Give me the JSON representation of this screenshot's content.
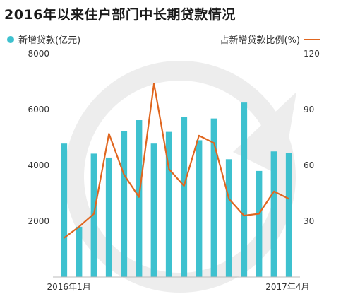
{
  "title": "2016年以来住户部门中长期贷款情况",
  "legend": {
    "bar_label": "新增贷款(亿元)",
    "line_label": "占新增贷款比例(%)"
  },
  "colors": {
    "bar": "#3ec1cf",
    "line": "#e0661f",
    "watermark": "#ededed"
  },
  "chart_data": {
    "type": "bar+line",
    "title": "2016年以来住户部门中长期贷款情况",
    "categories": [
      "2016-01",
      "2016-02",
      "2016-03",
      "2016-04",
      "2016-05",
      "2016-06",
      "2016-07",
      "2016-08",
      "2016-09",
      "2016-10",
      "2016-11",
      "2016-12",
      "2017-01",
      "2017-02",
      "2017-03",
      "2017-04"
    ],
    "x_tick_labels": {
      "first": "2016年1月",
      "last": "2017年4月"
    },
    "series": [
      {
        "name": "新增贷款(亿元)",
        "type": "bar",
        "axis": "left",
        "values": [
          4780,
          1800,
          4420,
          4280,
          5220,
          5620,
          4780,
          5200,
          5730,
          4900,
          5680,
          4220,
          6250,
          3800,
          4500,
          4450
        ]
      },
      {
        "name": "占新增贷款比例(%)",
        "type": "line",
        "axis": "right",
        "values": [
          21,
          27,
          34,
          77,
          55,
          43,
          104,
          58,
          49,
          76,
          72,
          42,
          33,
          34,
          46,
          42
        ]
      }
    ],
    "y_left": {
      "min": 0,
      "max": 8000,
      "ticks": [
        2000,
        4000,
        6000,
        8000
      ]
    },
    "y_right": {
      "min": 0,
      "max": 120,
      "ticks": [
        30,
        60,
        90,
        120
      ]
    },
    "grid": false,
    "legend_placement": "top"
  }
}
